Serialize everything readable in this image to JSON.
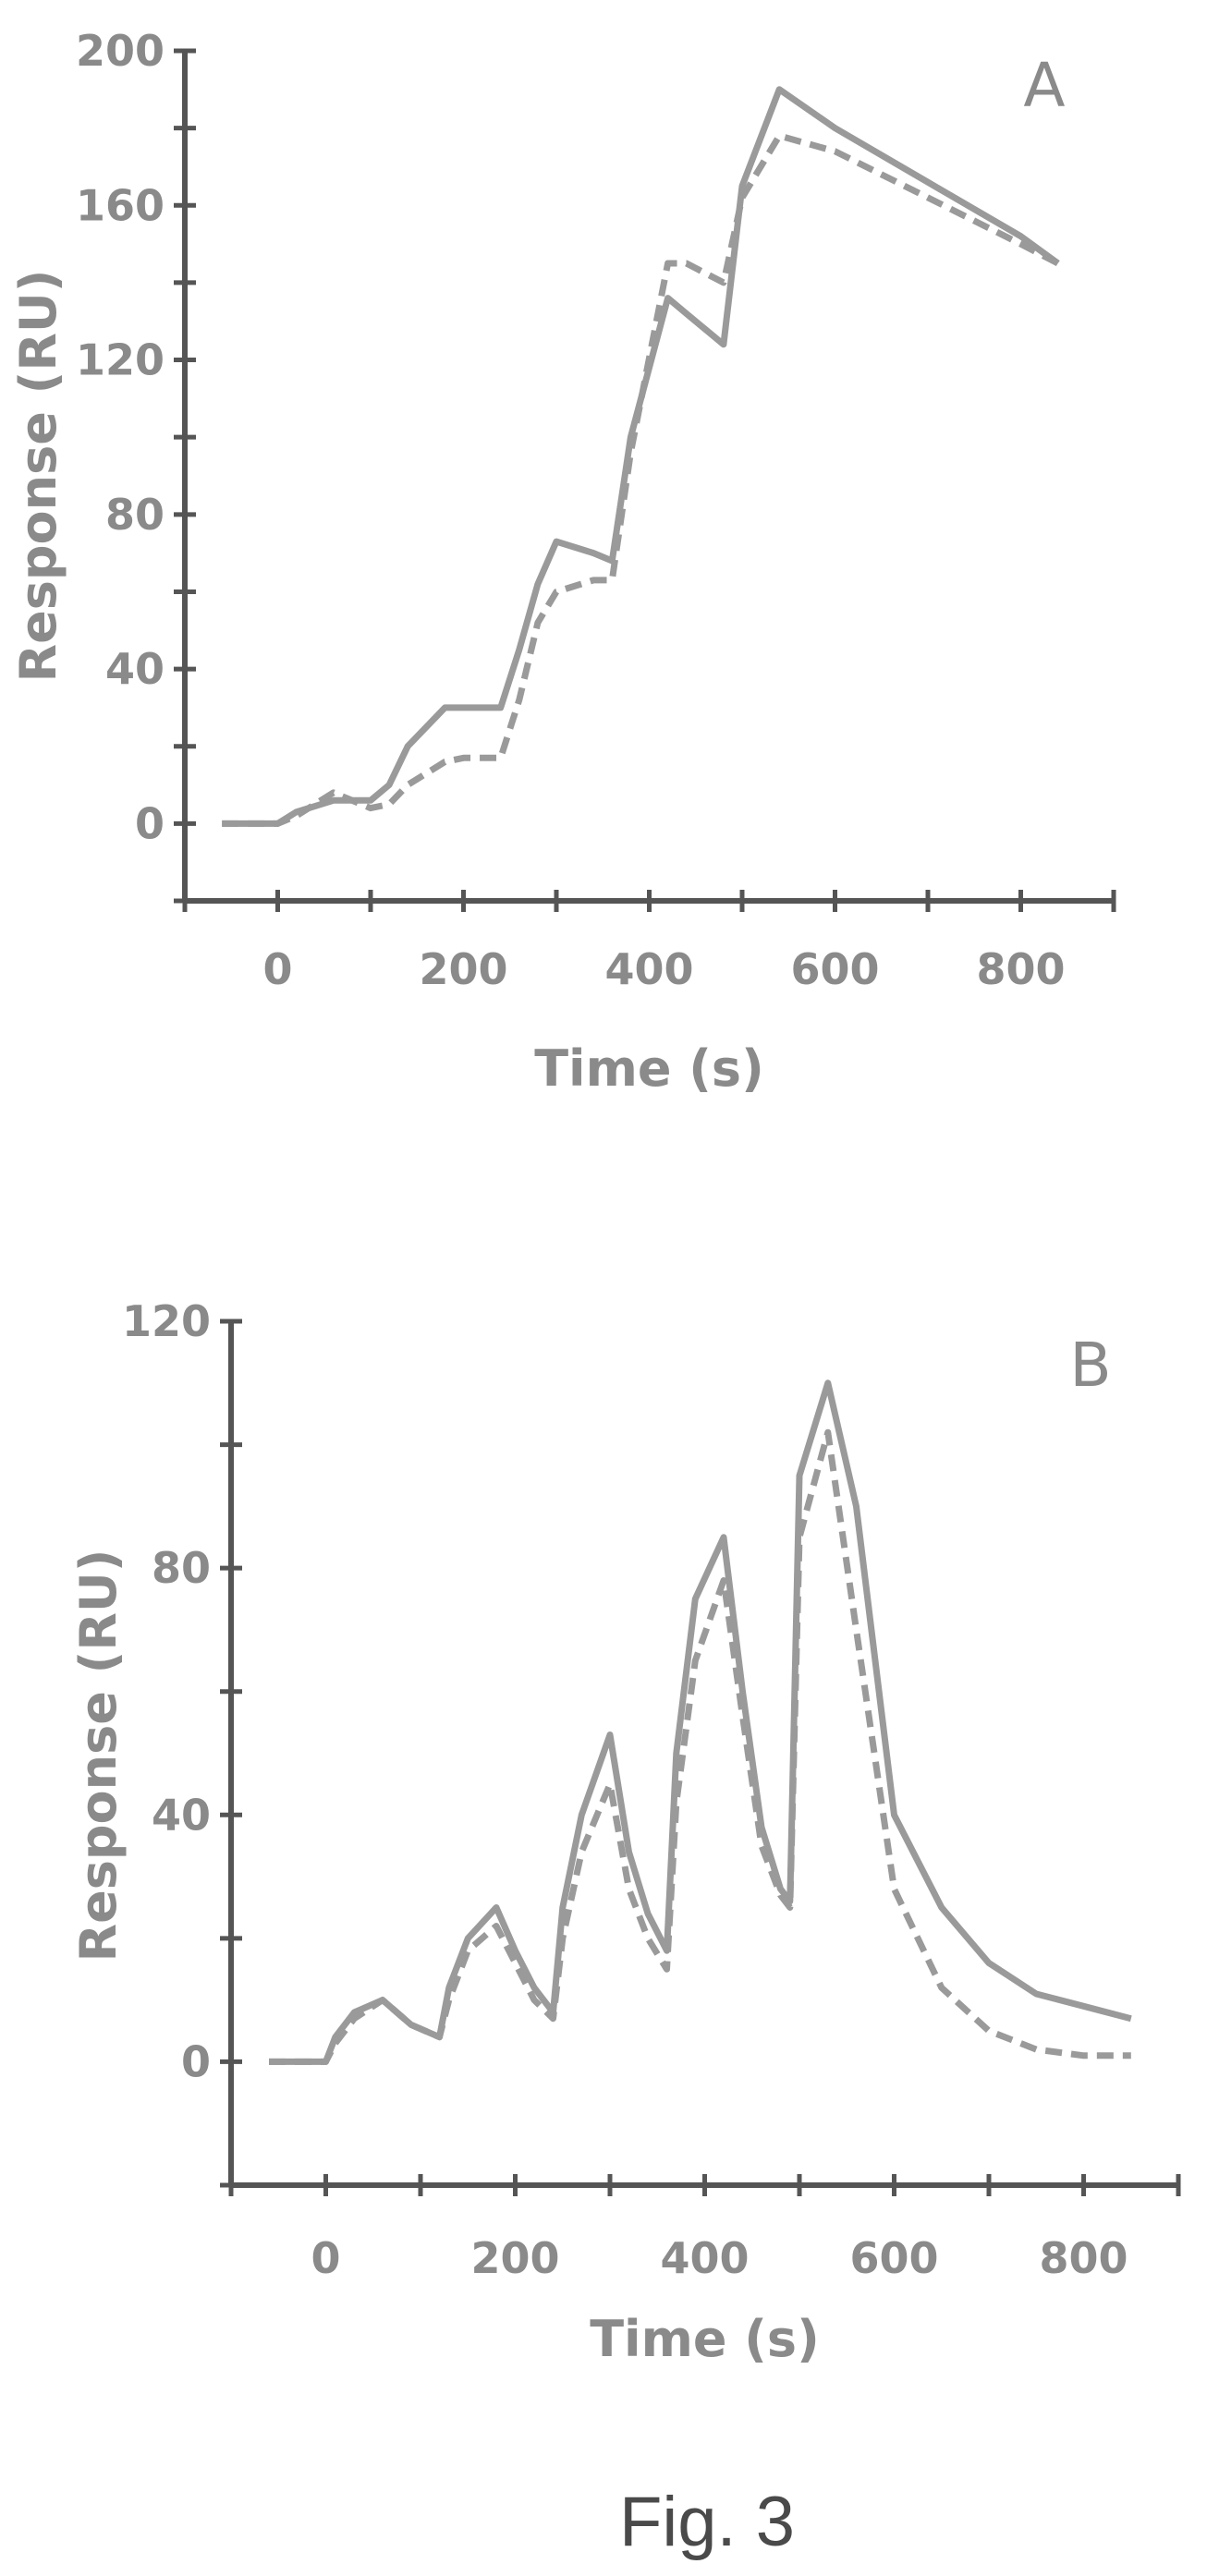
{
  "chart_data": [
    {
      "type": "line",
      "panel_label": "A",
      "xlabel": "Time (s)",
      "ylabel": "Response (RU)",
      "xlim": [
        -100,
        900
      ],
      "ylim": [
        -20,
        200
      ],
      "xticks": [
        0,
        200,
        400,
        600,
        800
      ],
      "yticks": [
        0,
        40,
        80,
        120,
        160,
        200
      ],
      "grid": false,
      "series": [
        {
          "style": "solid",
          "x": [
            -60,
            0,
            20,
            60,
            100,
            120,
            140,
            180,
            200,
            240,
            260,
            280,
            300,
            340,
            360,
            380,
            420,
            440,
            480,
            500,
            540,
            600,
            700,
            800,
            840
          ],
          "y": [
            0,
            0,
            3,
            6,
            6,
            10,
            20,
            30,
            30,
            30,
            45,
            62,
            73,
            70,
            68,
            100,
            136,
            132,
            124,
            165,
            190,
            180,
            166,
            152,
            145
          ]
        },
        {
          "style": "dashed",
          "x": [
            -60,
            0,
            20,
            60,
            100,
            120,
            140,
            180,
            200,
            240,
            260,
            280,
            300,
            340,
            360,
            380,
            420,
            440,
            480,
            500,
            540,
            600,
            700,
            800,
            840
          ],
          "y": [
            0,
            0,
            2,
            8,
            4,
            5,
            10,
            16,
            17,
            17,
            32,
            52,
            60,
            63,
            63,
            96,
            145,
            145,
            140,
            162,
            178,
            174,
            162,
            150,
            145
          ]
        }
      ]
    },
    {
      "type": "line",
      "panel_label": "B",
      "xlabel": "Time (s)",
      "ylabel": "Response (RU)",
      "xlim": [
        -100,
        900
      ],
      "ylim": [
        -20,
        120
      ],
      "xticks": [
        0,
        200,
        400,
        600,
        800
      ],
      "yticks": [
        0,
        40,
        80,
        120
      ],
      "grid": false,
      "series": [
        {
          "style": "solid",
          "x": [
            -60,
            0,
            10,
            30,
            60,
            90,
            120,
            130,
            150,
            180,
            200,
            220,
            240,
            250,
            270,
            300,
            320,
            340,
            360,
            370,
            390,
            420,
            440,
            460,
            480,
            490,
            500,
            530,
            560,
            600,
            650,
            700,
            750,
            800,
            850
          ],
          "y": [
            0,
            0,
            4,
            8,
            10,
            6,
            4,
            12,
            20,
            25,
            18,
            12,
            8,
            25,
            40,
            53,
            34,
            24,
            18,
            50,
            75,
            85,
            60,
            38,
            28,
            26,
            95,
            110,
            90,
            40,
            25,
            16,
            11,
            9,
            7
          ]
        },
        {
          "style": "dashed",
          "x": [
            -60,
            0,
            10,
            30,
            60,
            90,
            120,
            130,
            150,
            180,
            200,
            220,
            240,
            250,
            270,
            300,
            320,
            340,
            360,
            370,
            390,
            420,
            440,
            460,
            480,
            490,
            500,
            530,
            560,
            600,
            650,
            700,
            750,
            800,
            850
          ],
          "y": [
            0,
            0,
            3,
            7,
            10,
            6,
            4,
            10,
            18,
            22,
            16,
            10,
            7,
            20,
            34,
            45,
            28,
            20,
            15,
            42,
            65,
            78,
            56,
            35,
            27,
            25,
            85,
            102,
            70,
            28,
            12,
            5,
            2,
            1,
            1
          ]
        }
      ]
    }
  ],
  "caption": "Fig. 3"
}
